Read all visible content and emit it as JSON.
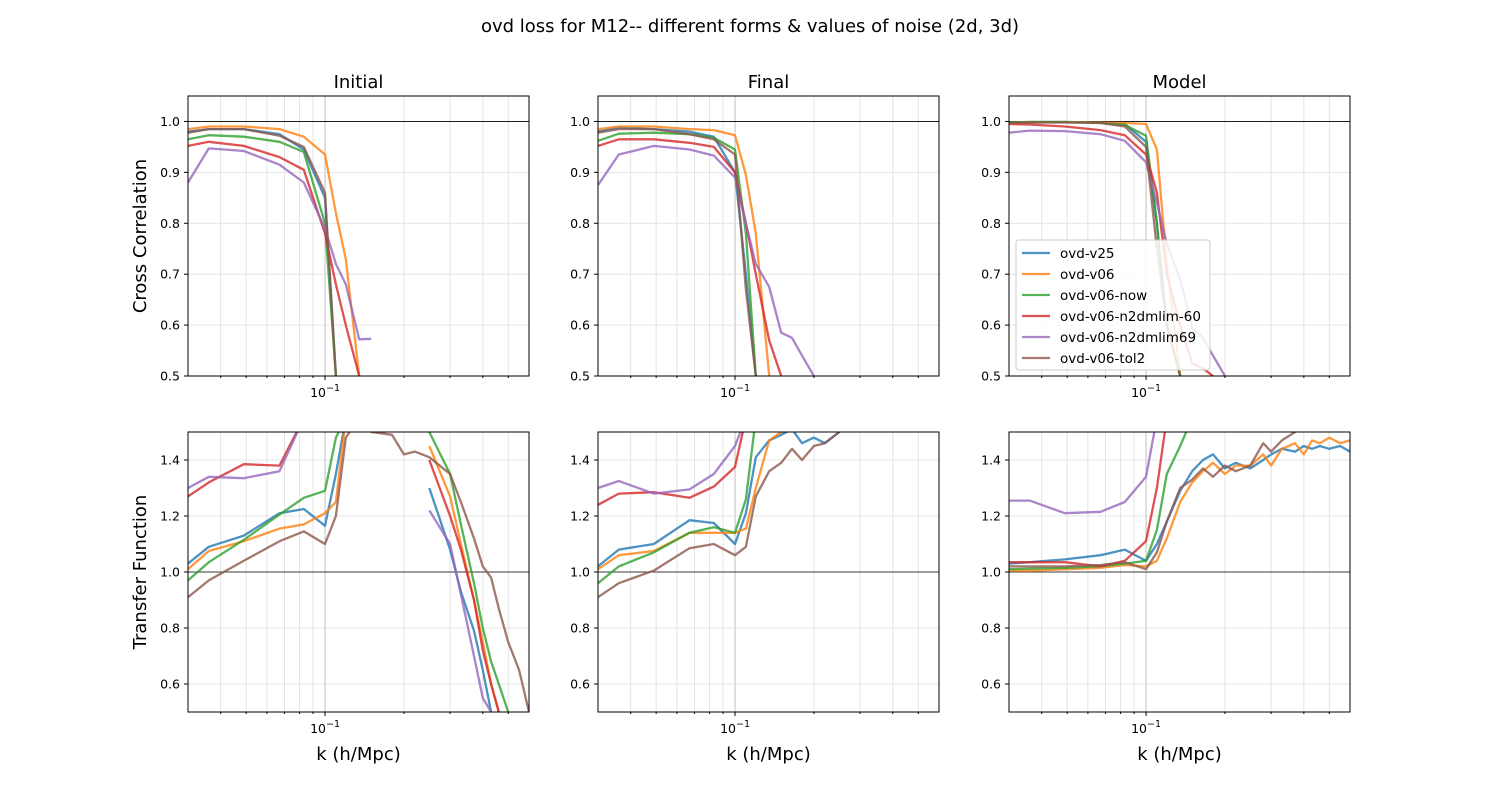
{
  "figure": {
    "title": "ovd loss for M12-- different forms & values of noise (2d, 3d)"
  },
  "colors": {
    "ovd-v25": "#1f77b4",
    "ovd-v06": "#ff7f0e",
    "ovd-v06-now": "#2ca02c",
    "ovd-v06-n2dmlim-60": "#d62728",
    "ovd-v06-n2dmlim69": "#9467bd",
    "ovd-v06-tol2": "#8c564b"
  },
  "legend": {
    "placement": "center-left of Model cross-correlation panel",
    "entries": [
      "ovd-v25",
      "ovd-v06",
      "ovd-v06-now",
      "ovd-v06-n2dmlim-60",
      "ovd-v06-n2dmlim69",
      "ovd-v06-tol2"
    ]
  },
  "chart_data": [
    {
      "type": "line",
      "title": "Initial",
      "xlabel": "",
      "ylabel": "Cross Correlation",
      "xscale": "log",
      "xlim": [
        0.03,
        0.6
      ],
      "ylim": [
        0.5,
        1.05
      ],
      "yticks": [
        "0.5",
        "0.6",
        "0.7",
        "0.8",
        "0.9",
        "1.0"
      ],
      "xtick_label": "10^-1",
      "hline": 1.0,
      "grid": true,
      "x": [
        0.03,
        0.036,
        0.049,
        0.067,
        0.083,
        0.1,
        0.11,
        0.12,
        0.135,
        0.15
      ],
      "series": [
        {
          "name": "ovd-v25",
          "values": [
            0.98,
            0.985,
            0.985,
            0.975,
            0.945,
            0.85,
            0.5,
            null,
            null,
            null
          ]
        },
        {
          "name": "ovd-v06",
          "values": [
            0.985,
            0.99,
            0.99,
            0.985,
            0.97,
            0.935,
            0.82,
            0.73,
            0.5,
            null
          ]
        },
        {
          "name": "ovd-v06-now",
          "values": [
            0.965,
            0.973,
            0.97,
            0.96,
            0.94,
            0.8,
            0.5,
            null,
            null,
            null
          ]
        },
        {
          "name": "ovd-v06-n2dmlim-60",
          "values": [
            0.952,
            0.96,
            0.952,
            0.93,
            0.905,
            0.78,
            0.68,
            0.6,
            0.5,
            null
          ]
        },
        {
          "name": "ovd-v06-n2dmlim69",
          "values": [
            0.88,
            0.947,
            0.942,
            0.915,
            0.88,
            0.79,
            0.72,
            0.68,
            0.572,
            0.573
          ]
        },
        {
          "name": "ovd-v06-tol2",
          "values": [
            0.978,
            0.985,
            0.985,
            0.972,
            0.95,
            0.86,
            0.5,
            null,
            null,
            null
          ]
        }
      ]
    },
    {
      "type": "line",
      "title": "Final",
      "xlabel": "",
      "ylabel": "",
      "xscale": "log",
      "xlim": [
        0.03,
        0.6
      ],
      "ylim": [
        0.5,
        1.05
      ],
      "yticks": [
        "0.5",
        "0.6",
        "0.7",
        "0.8",
        "0.9",
        "1.0"
      ],
      "xtick_label": "10^-1",
      "hline": 1.0,
      "grid": true,
      "x": [
        0.03,
        0.036,
        0.049,
        0.067,
        0.083,
        0.1,
        0.11,
        0.12,
        0.135,
        0.15,
        0.165,
        0.18,
        0.2
      ],
      "series": [
        {
          "name": "ovd-v25",
          "values": [
            0.98,
            0.988,
            0.985,
            0.98,
            0.97,
            0.9,
            0.7,
            0.5,
            null,
            null,
            null,
            null,
            null
          ]
        },
        {
          "name": "ovd-v06",
          "values": [
            0.985,
            0.99,
            0.99,
            0.985,
            0.983,
            0.973,
            0.895,
            0.78,
            0.5,
            null,
            null,
            null,
            null
          ]
        },
        {
          "name": "ovd-v06-now",
          "values": [
            0.962,
            0.976,
            0.978,
            0.975,
            0.968,
            0.945,
            0.78,
            0.5,
            null,
            null,
            null,
            null,
            null
          ]
        },
        {
          "name": "ovd-v06-n2dmlim-60",
          "values": [
            0.952,
            0.965,
            0.965,
            0.958,
            0.95,
            0.9,
            0.8,
            0.7,
            0.57,
            0.5,
            null,
            null,
            null
          ]
        },
        {
          "name": "ovd-v06-n2dmlim69",
          "values": [
            0.875,
            0.935,
            0.952,
            0.945,
            0.933,
            0.89,
            0.8,
            0.72,
            0.675,
            0.585,
            0.575,
            0.54,
            0.5
          ]
        },
        {
          "name": "ovd-v06-tol2",
          "values": [
            0.978,
            0.985,
            0.985,
            0.975,
            0.965,
            0.935,
            0.67,
            0.5,
            null,
            null,
            null,
            null,
            null
          ]
        }
      ]
    },
    {
      "type": "line",
      "title": "Model",
      "xlabel": "",
      "ylabel": "",
      "xscale": "log",
      "xlim": [
        0.03,
        0.6
      ],
      "ylim": [
        0.5,
        1.05
      ],
      "yticks": [
        "0.5",
        "0.6",
        "0.7",
        "0.8",
        "0.9",
        "1.0"
      ],
      "xtick_label": "10^-1",
      "hline": 1.0,
      "grid": true,
      "x": [
        0.03,
        0.036,
        0.049,
        0.067,
        0.083,
        0.1,
        0.11,
        0.12,
        0.135,
        0.15,
        0.165,
        0.18,
        0.2
      ],
      "series": [
        {
          "name": "ovd-v25",
          "values": [
            0.998,
            0.999,
            0.999,
            0.998,
            0.995,
            0.96,
            0.8,
            0.6,
            0.5,
            null,
            null,
            null,
            null
          ]
        },
        {
          "name": "ovd-v06",
          "values": [
            0.998,
            0.999,
            0.999,
            0.998,
            0.997,
            0.995,
            0.945,
            0.72,
            0.5,
            null,
            null,
            null,
            null
          ]
        },
        {
          "name": "ovd-v06-now",
          "values": [
            0.998,
            0.999,
            0.999,
            0.997,
            0.993,
            0.972,
            0.8,
            0.6,
            0.5,
            null,
            null,
            null,
            null
          ]
        },
        {
          "name": "ovd-v06-n2dmlim-60",
          "values": [
            0.995,
            0.994,
            0.99,
            0.983,
            0.973,
            0.935,
            0.86,
            0.7,
            0.6,
            0.525,
            0.515,
            0.5,
            null
          ]
        },
        {
          "name": "ovd-v06-n2dmlim69",
          "values": [
            0.978,
            0.982,
            0.981,
            0.975,
            0.962,
            0.92,
            0.84,
            0.76,
            0.69,
            0.595,
            0.575,
            0.54,
            0.5
          ]
        },
        {
          "name": "ovd-v06-tol2",
          "values": [
            0.997,
            0.998,
            0.998,
            0.997,
            0.99,
            0.95,
            0.75,
            0.6,
            0.5,
            null,
            null,
            null,
            null
          ]
        }
      ]
    },
    {
      "type": "line",
      "title": "",
      "xlabel": "k (h/Mpc)",
      "ylabel": "Transfer Function",
      "xscale": "log",
      "xlim": [
        0.03,
        0.6
      ],
      "ylim": [
        0.5,
        1.5
      ],
      "yticks": [
        "0.6",
        "0.8",
        "1.0",
        "1.2",
        "1.4"
      ],
      "xtick_label": "10^-1",
      "hline": 1.0,
      "grid": true,
      "x": [
        0.03,
        0.036,
        0.049,
        0.067,
        0.083,
        0.1,
        0.11,
        0.12,
        0.135,
        0.15,
        0.18,
        0.2,
        0.22,
        0.25,
        0.3,
        0.33,
        0.37,
        0.4,
        0.43,
        0.46,
        0.5,
        0.55,
        0.6
      ],
      "series": [
        {
          "name": "ovd-v25",
          "values": [
            1.03,
            1.09,
            1.13,
            1.21,
            1.225,
            1.165,
            1.35,
            1.55,
            null,
            null,
            null,
            null,
            null,
            1.3,
            1.08,
            0.93,
            0.79,
            0.65,
            0.5,
            null,
            null,
            null,
            null
          ]
        },
        {
          "name": "ovd-v06",
          "values": [
            1.01,
            1.075,
            1.11,
            1.155,
            1.17,
            1.21,
            1.25,
            1.55,
            null,
            null,
            null,
            null,
            null,
            1.45,
            1.27,
            1.1,
            0.9,
            0.75,
            0.6,
            0.5,
            null,
            null,
            null
          ]
        },
        {
          "name": "ovd-v06-now",
          "values": [
            0.97,
            1.035,
            1.115,
            1.205,
            1.265,
            1.29,
            1.48,
            1.55,
            null,
            null,
            null,
            null,
            null,
            1.5,
            1.35,
            1.17,
            0.96,
            0.8,
            0.68,
            0.6,
            0.5,
            null,
            null
          ]
        },
        {
          "name": "ovd-v06-n2dmlim-60",
          "values": [
            1.27,
            1.32,
            1.385,
            1.38,
            1.55,
            null,
            null,
            null,
            null,
            null,
            null,
            null,
            null,
            1.4,
            1.2,
            1.08,
            0.9,
            0.72,
            0.6,
            0.5,
            null,
            null,
            null
          ]
        },
        {
          "name": "ovd-v06-n2dmlim69",
          "values": [
            1.3,
            1.34,
            1.335,
            1.36,
            1.55,
            null,
            null,
            null,
            null,
            null,
            null,
            null,
            null,
            1.22,
            1.1,
            0.92,
            0.7,
            0.55,
            0.5,
            null,
            null,
            null,
            null
          ]
        },
        {
          "name": "ovd-v06-tol2",
          "values": [
            0.91,
            0.97,
            1.04,
            1.11,
            1.145,
            1.1,
            1.2,
            1.48,
            1.55,
            1.5,
            1.49,
            1.42,
            1.43,
            1.41,
            1.35,
            1.25,
            1.12,
            1.02,
            0.98,
            0.87,
            0.75,
            0.65,
            0.5
          ]
        }
      ]
    },
    {
      "type": "line",
      "title": "",
      "xlabel": "k (h/Mpc)",
      "ylabel": "",
      "xscale": "log",
      "xlim": [
        0.03,
        0.6
      ],
      "ylim": [
        0.5,
        1.5
      ],
      "yticks": [
        "0.6",
        "0.8",
        "1.0",
        "1.2",
        "1.4"
      ],
      "xtick_label": "10^-1",
      "hline": 1.0,
      "grid": true,
      "x": [
        0.03,
        0.036,
        0.049,
        0.067,
        0.083,
        0.1,
        0.11,
        0.12,
        0.135,
        0.15,
        0.165,
        0.18,
        0.2,
        0.22,
        0.25
      ],
      "series": [
        {
          "name": "ovd-v25",
          "values": [
            1.02,
            1.08,
            1.1,
            1.185,
            1.175,
            1.1,
            1.21,
            1.41,
            1.47,
            1.49,
            1.51,
            1.46,
            1.48,
            1.46,
            1.5
          ]
        },
        {
          "name": "ovd-v06",
          "values": [
            1.01,
            1.06,
            1.075,
            1.14,
            1.14,
            1.14,
            1.155,
            1.3,
            1.47,
            1.5,
            null,
            null,
            null,
            null,
            null
          ]
        },
        {
          "name": "ovd-v06-now",
          "values": [
            0.96,
            1.02,
            1.07,
            1.14,
            1.16,
            1.14,
            1.26,
            1.55,
            null,
            null,
            null,
            null,
            null,
            null,
            null
          ]
        },
        {
          "name": "ovd-v06-n2dmlim-60",
          "values": [
            1.24,
            1.28,
            1.285,
            1.265,
            1.305,
            1.375,
            1.55,
            null,
            null,
            null,
            null,
            null,
            null,
            null,
            null
          ]
        },
        {
          "name": "ovd-v06-n2dmlim69",
          "values": [
            1.3,
            1.325,
            1.28,
            1.295,
            1.35,
            1.45,
            1.55,
            null,
            null,
            null,
            null,
            null,
            null,
            null,
            null
          ]
        },
        {
          "name": "ovd-v06-tol2",
          "values": [
            0.91,
            0.96,
            1.005,
            1.085,
            1.1,
            1.06,
            1.09,
            1.27,
            1.36,
            1.39,
            1.44,
            1.4,
            1.45,
            1.46,
            1.5
          ]
        }
      ]
    },
    {
      "type": "line",
      "title": "",
      "xlabel": "k (h/Mpc)",
      "ylabel": "",
      "xscale": "log",
      "xlim": [
        0.03,
        0.6
      ],
      "ylim": [
        0.5,
        1.5
      ],
      "yticks": [
        "0.6",
        "0.8",
        "1.0",
        "1.2",
        "1.4"
      ],
      "xtick_label": "10^-1",
      "hline": 1.0,
      "grid": true,
      "x": [
        0.03,
        0.036,
        0.049,
        0.067,
        0.083,
        0.1,
        0.11,
        0.12,
        0.135,
        0.15,
        0.165,
        0.18,
        0.2,
        0.22,
        0.25,
        0.28,
        0.3,
        0.33,
        0.37,
        0.4,
        0.43,
        0.46,
        0.5,
        0.55,
        0.6
      ],
      "series": [
        {
          "name": "ovd-v25",
          "values": [
            1.03,
            1.035,
            1.045,
            1.06,
            1.08,
            1.04,
            1.1,
            1.18,
            1.29,
            1.36,
            1.4,
            1.42,
            1.37,
            1.39,
            1.37,
            1.4,
            1.42,
            1.44,
            1.43,
            1.45,
            1.44,
            1.45,
            1.44,
            1.45,
            1.43
          ]
        },
        {
          "name": "ovd-v06",
          "values": [
            1.005,
            1.005,
            1.01,
            1.015,
            1.025,
            1.02,
            1.04,
            1.12,
            1.25,
            1.32,
            1.36,
            1.39,
            1.35,
            1.38,
            1.38,
            1.42,
            1.38,
            1.44,
            1.46,
            1.42,
            1.47,
            1.46,
            1.48,
            1.46,
            1.47
          ]
        },
        {
          "name": "ovd-v06-now",
          "values": [
            1.01,
            1.012,
            1.015,
            1.02,
            1.03,
            1.04,
            1.15,
            1.35,
            1.45,
            1.55,
            null,
            null,
            null,
            null,
            null,
            null,
            null,
            null,
            null,
            null,
            null,
            null,
            null,
            null,
            null
          ]
        },
        {
          "name": "ovd-v06-n2dmlim-60",
          "values": [
            1.035,
            1.035,
            1.035,
            1.02,
            1.04,
            1.11,
            1.3,
            1.55,
            null,
            null,
            null,
            null,
            null,
            null,
            null,
            null,
            null,
            null,
            null,
            null,
            null,
            null,
            null,
            null,
            null
          ]
        },
        {
          "name": "ovd-v06-n2dmlim69",
          "values": [
            1.255,
            1.255,
            1.21,
            1.215,
            1.25,
            1.34,
            1.55,
            null,
            null,
            null,
            null,
            null,
            null,
            null,
            null,
            null,
            null,
            null,
            null,
            null,
            null,
            null,
            null,
            null,
            null
          ]
        },
        {
          "name": "ovd-v06-tol2",
          "values": [
            1.02,
            1.02,
            1.02,
            1.025,
            1.035,
            1.01,
            1.07,
            1.18,
            1.3,
            1.33,
            1.37,
            1.34,
            1.38,
            1.36,
            1.38,
            1.46,
            1.43,
            1.47,
            1.5,
            1.55,
            null,
            null,
            null,
            null,
            null
          ]
        }
      ]
    }
  ]
}
